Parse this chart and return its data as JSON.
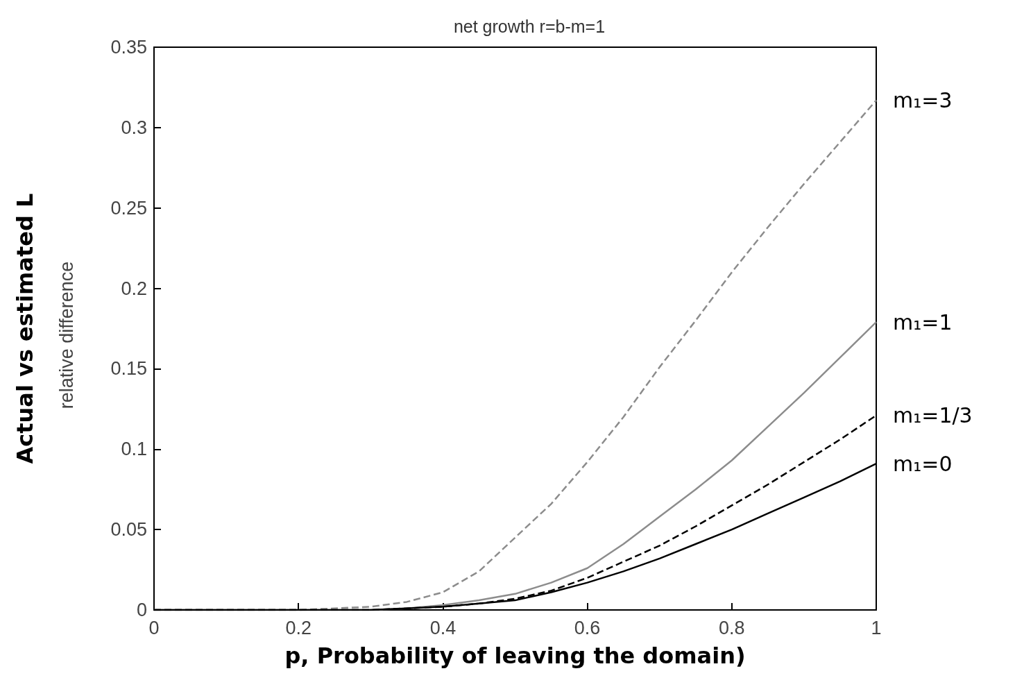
{
  "chart_data": {
    "type": "line",
    "title": "net growth r=b-m=1",
    "xlabel": "p, Probability of leaving the domain)",
    "ylabel": "Actual vs estimated L",
    "annotations": [
      "relative difference"
    ],
    "x": [
      0,
      0.1,
      0.2,
      0.3,
      0.35,
      0.4,
      0.45,
      0.5,
      0.55,
      0.6,
      0.65,
      0.7,
      0.75,
      0.8,
      0.85,
      0.9,
      0.95,
      1
    ],
    "series": [
      {
        "name": "m₁=3",
        "color": "#8c8c8c",
        "line_style": "dashed",
        "values": [
          0,
          0,
          0,
          0.002,
          0.005,
          0.011,
          0.024,
          0.045,
          0.066,
          0.092,
          0.12,
          0.151,
          0.18,
          0.21,
          0.238,
          0.265,
          0.291,
          0.317
        ]
      },
      {
        "name": "m₁=1",
        "color": "#8c8c8c",
        "line_style": "solid",
        "values": [
          0,
          0,
          0,
          0,
          0.001,
          0.003,
          0.006,
          0.01,
          0.017,
          0.026,
          0.041,
          0.058,
          0.075,
          0.093,
          0.114,
          0.135,
          0.157,
          0.179
        ]
      },
      {
        "name": "m₁=1/3",
        "color": "#000000",
        "line_style": "dashed",
        "values": [
          0,
          0,
          0,
          0,
          0.001,
          0.002,
          0.004,
          0.007,
          0.012,
          0.02,
          0.03,
          0.04,
          0.052,
          0.065,
          0.078,
          0.092,
          0.106,
          0.121
        ]
      },
      {
        "name": "m₁=0",
        "color": "#000000",
        "line_style": "solid",
        "values": [
          0,
          0,
          0,
          0,
          0.001,
          0.002,
          0.004,
          0.006,
          0.011,
          0.017,
          0.024,
          0.032,
          0.041,
          0.05,
          0.06,
          0.07,
          0.08,
          0.091
        ]
      }
    ],
    "xlim": [
      0,
      1
    ],
    "xticks": [
      0,
      0.2,
      0.4,
      0.6,
      0.8,
      1
    ],
    "ylim": [
      0,
      0.35
    ],
    "yticks": [
      0,
      0.05,
      0.1,
      0.15,
      0.2,
      0.25,
      0.3,
      0.35
    ],
    "grid": false,
    "legend": false,
    "marker": "none"
  }
}
